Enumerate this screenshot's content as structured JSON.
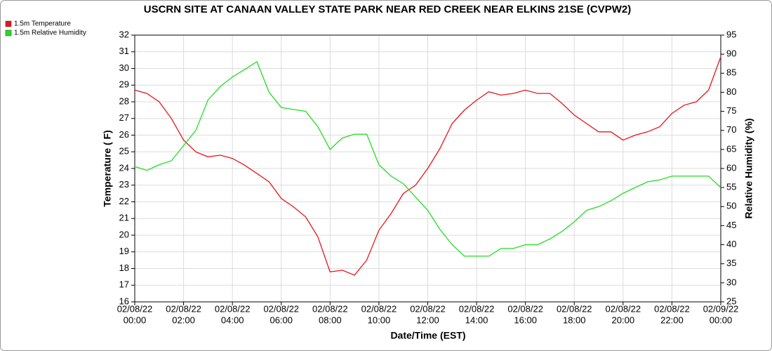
{
  "chart_data": {
    "type": "line",
    "title": "USCRN SITE AT CANAAN VALLEY STATE PARK NEAR RED CREEK NEAR ELKINS 21SE (CVPW2)",
    "xlabel": "Date/Time (EST)",
    "ylabel": "Temperature ( F)",
    "y2label": "Relative Humidity (%)",
    "x": [
      "2022-02-08T00:00",
      "2022-02-08T00:30",
      "2022-02-08T01:00",
      "2022-02-08T01:30",
      "2022-02-08T02:00",
      "2022-02-08T02:30",
      "2022-02-08T03:00",
      "2022-02-08T03:30",
      "2022-02-08T04:00",
      "2022-02-08T04:30",
      "2022-02-08T05:00",
      "2022-02-08T05:30",
      "2022-02-08T06:00",
      "2022-02-08T06:30",
      "2022-02-08T07:00",
      "2022-02-08T07:30",
      "2022-02-08T08:00",
      "2022-02-08T08:30",
      "2022-02-08T09:00",
      "2022-02-08T09:30",
      "2022-02-08T10:00",
      "2022-02-08T10:30",
      "2022-02-08T11:00",
      "2022-02-08T11:30",
      "2022-02-08T12:00",
      "2022-02-08T12:30",
      "2022-02-08T13:00",
      "2022-02-08T13:30",
      "2022-02-08T14:00",
      "2022-02-08T14:30",
      "2022-02-08T15:00",
      "2022-02-08T15:30",
      "2022-02-08T16:00",
      "2022-02-08T16:30",
      "2022-02-08T17:00",
      "2022-02-08T17:30",
      "2022-02-08T18:00",
      "2022-02-08T18:30",
      "2022-02-08T19:00",
      "2022-02-08T19:30",
      "2022-02-08T20:00",
      "2022-02-08T20:30",
      "2022-02-08T21:00",
      "2022-02-08T21:30",
      "2022-02-08T22:00",
      "2022-02-08T22:30",
      "2022-02-08T23:00",
      "2022-02-08T23:30",
      "2022-02-09T00:00"
    ],
    "series": [
      {
        "name": "1.5m Temperature",
        "color": "#e8151b",
        "axis": "y",
        "values": [
          28.7,
          28.5,
          28.0,
          27.0,
          25.7,
          25.0,
          24.7,
          24.8,
          24.6,
          24.2,
          23.7,
          23.2,
          22.2,
          21.7,
          21.1,
          19.9,
          17.8,
          17.9,
          17.6,
          18.5,
          20.3,
          21.3,
          22.5,
          23.0,
          24.0,
          25.2,
          26.7,
          27.5,
          28.1,
          28.6,
          28.4,
          28.5,
          28.7,
          28.5,
          28.5,
          27.9,
          27.2,
          26.7,
          26.2,
          26.2,
          25.7,
          26.0,
          26.2,
          26.5,
          27.3,
          27.8,
          28.0,
          28.7,
          30.7
        ]
      },
      {
        "name": "1.5m Relative Humidity",
        "color": "#22dd22",
        "axis": "y2",
        "values": [
          60.5,
          59.5,
          61,
          62,
          66,
          70,
          78,
          81.5,
          84,
          86,
          88,
          80,
          76,
          75.5,
          75,
          71,
          65,
          68,
          69,
          69,
          61,
          58,
          56,
          52.5,
          49,
          44,
          40,
          37,
          37,
          37,
          39,
          39,
          40,
          40,
          41.5,
          43.5,
          46,
          49,
          50,
          51.5,
          53.5,
          55,
          56.5,
          57,
          58,
          58,
          58,
          58,
          55
        ]
      }
    ],
    "xlim": [
      "2022-02-08T00:00",
      "2022-02-09T00:00"
    ],
    "xticks": [
      {
        "value": "2022-02-08T00:00",
        "label": [
          "02/08/22",
          "00:00"
        ]
      },
      {
        "value": "2022-02-08T02:00",
        "label": [
          "02/08/22",
          "02:00"
        ]
      },
      {
        "value": "2022-02-08T04:00",
        "label": [
          "02/08/22",
          "04:00"
        ]
      },
      {
        "value": "2022-02-08T06:00",
        "label": [
          "02/08/22",
          "06:00"
        ]
      },
      {
        "value": "2022-02-08T08:00",
        "label": [
          "02/08/22",
          "08:00"
        ]
      },
      {
        "value": "2022-02-08T10:00",
        "label": [
          "02/08/22",
          "10:00"
        ]
      },
      {
        "value": "2022-02-08T12:00",
        "label": [
          "02/08/22",
          "12:00"
        ]
      },
      {
        "value": "2022-02-08T14:00",
        "label": [
          "02/08/22",
          "14:00"
        ]
      },
      {
        "value": "2022-02-08T16:00",
        "label": [
          "02/08/22",
          "16:00"
        ]
      },
      {
        "value": "2022-02-08T18:00",
        "label": [
          "02/08/22",
          "18:00"
        ]
      },
      {
        "value": "2022-02-08T20:00",
        "label": [
          "02/08/22",
          "20:00"
        ]
      },
      {
        "value": "2022-02-08T22:00",
        "label": [
          "02/08/22",
          "22:00"
        ]
      },
      {
        "value": "2022-02-09T00:00",
        "label": [
          "02/09/22",
          "00:00"
        ]
      }
    ],
    "ylim": [
      16,
      32
    ],
    "yticks": [
      16,
      17,
      18,
      19,
      20,
      21,
      22,
      23,
      24,
      25,
      26,
      27,
      28,
      29,
      30,
      31,
      32
    ],
    "y2lim": [
      25,
      95
    ],
    "y2ticks": [
      25,
      30,
      35,
      40,
      45,
      50,
      55,
      60,
      65,
      70,
      75,
      80,
      85,
      90,
      95
    ],
    "grid": true,
    "legend": "top-left"
  }
}
